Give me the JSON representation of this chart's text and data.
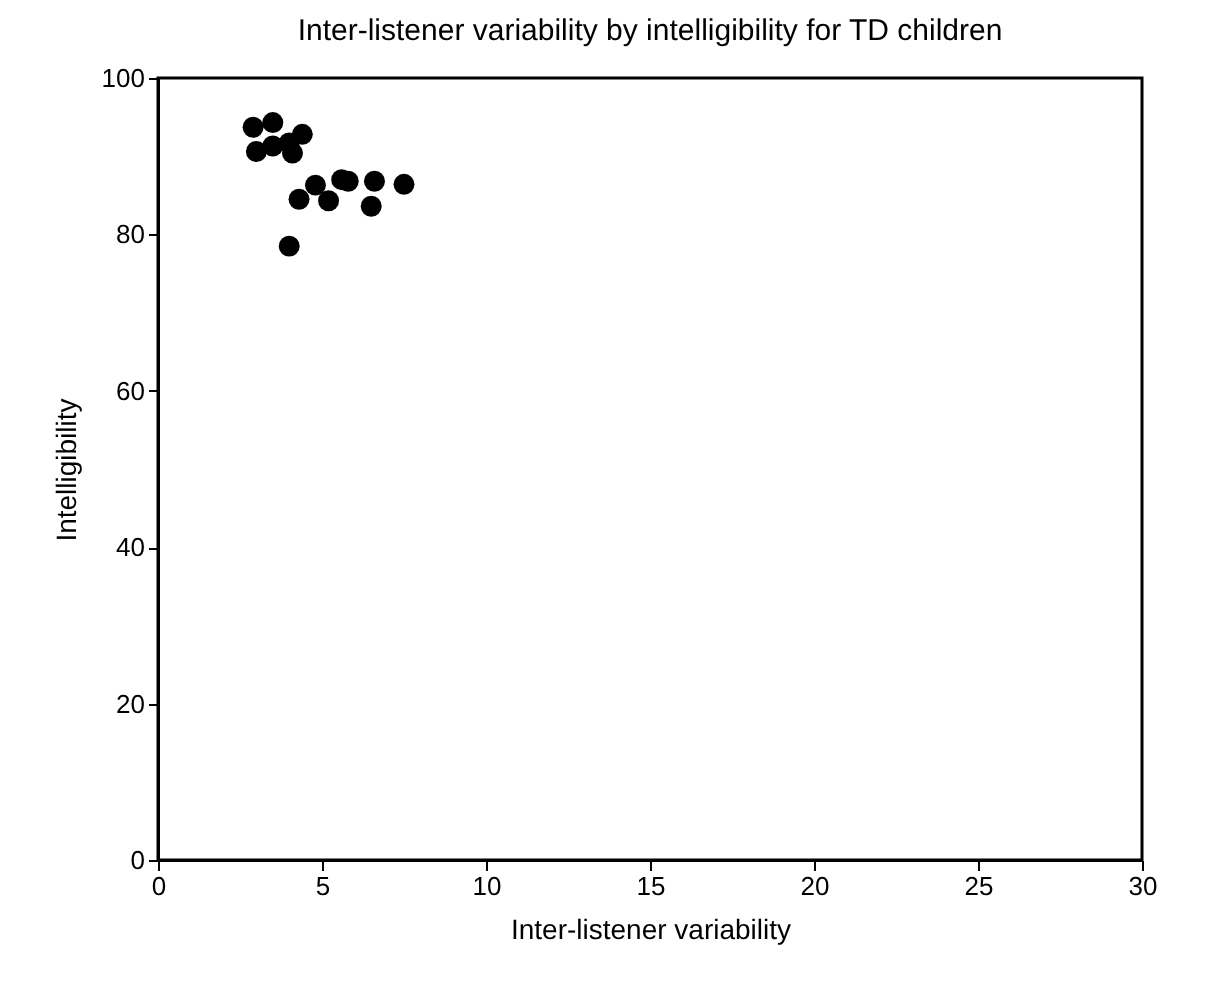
{
  "chart_data": {
    "type": "scatter",
    "title": "Inter-listener variability by intelligibility for TD children",
    "xlabel": "Inter-listener variability",
    "ylabel": "Intelligibility",
    "x": [
      2.9,
      3.5,
      3.0,
      3.5,
      4.1,
      4.4,
      4.0,
      4.3,
      4.8,
      5.2,
      5.6,
      5.8,
      6.6,
      7.5,
      6.5,
      4.0
    ],
    "values": [
      93.7,
      94.3,
      90.6,
      91.3,
      90.4,
      92.8,
      91.7,
      84.5,
      86.3,
      84.3,
      87.0,
      86.8,
      86.8,
      86.4,
      83.6,
      78.5
    ],
    "color": "#000000",
    "marker": "circle",
    "xlim": [
      0,
      30
    ],
    "xticks": [
      0,
      5,
      10,
      15,
      20,
      25,
      30
    ],
    "ylim": [
      0,
      100
    ],
    "yticks": [
      0,
      20,
      40,
      60,
      80,
      100
    ],
    "grid": false
  }
}
